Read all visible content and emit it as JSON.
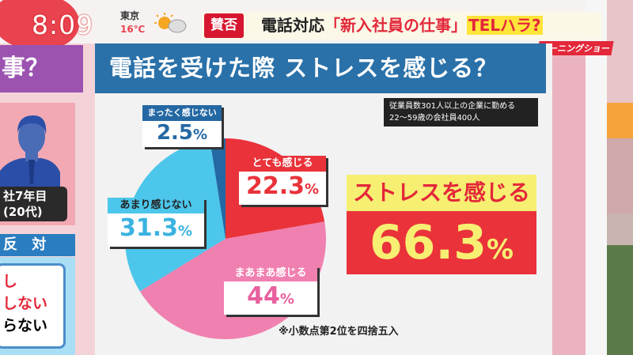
{
  "clock": {
    "time": "8:09",
    "city": "東京",
    "temp": "16℃",
    "weather_icon": "sun-cloud-icon"
  },
  "headline": {
    "badge": "賛否",
    "prefix": "電話対応",
    "quote": "「新入社員の仕事」",
    "tag": "TELハラ?",
    "show": "モーニングショー"
  },
  "left": {
    "panel_title": "事？",
    "caption_line1": "社7年目",
    "caption_line2": "(20代)",
    "header": "反 対",
    "options": [
      "し",
      "しない",
      "らない"
    ]
  },
  "chart_data": {
    "type": "pie",
    "title": "電話を受けた際 ストレスを感じる？",
    "note_line1": "従業員数301人以上の企業に勤める",
    "note_line2": "22〜59歳の会社員400人",
    "unit": "%",
    "slices": [
      {
        "label": "とても感じる",
        "value": 22.3,
        "display": "22.3",
        "color": "#e9323a"
      },
      {
        "label": "まあまあ感じる",
        "value": 44,
        "display": "44",
        "color": "#f080b0"
      },
      {
        "label": "あまり感じない",
        "value": 31.3,
        "display": "31.3",
        "color": "#4cc6ea"
      },
      {
        "label": "まったく感じない",
        "value": 2.5,
        "display": "2.5",
        "color": "#2468a3"
      }
    ],
    "start": "top",
    "direction": "clockwise",
    "summary_label": "ストレスを感じる",
    "summary_value": "66.3",
    "footnote": "※小数点第2位を四捨五入"
  }
}
